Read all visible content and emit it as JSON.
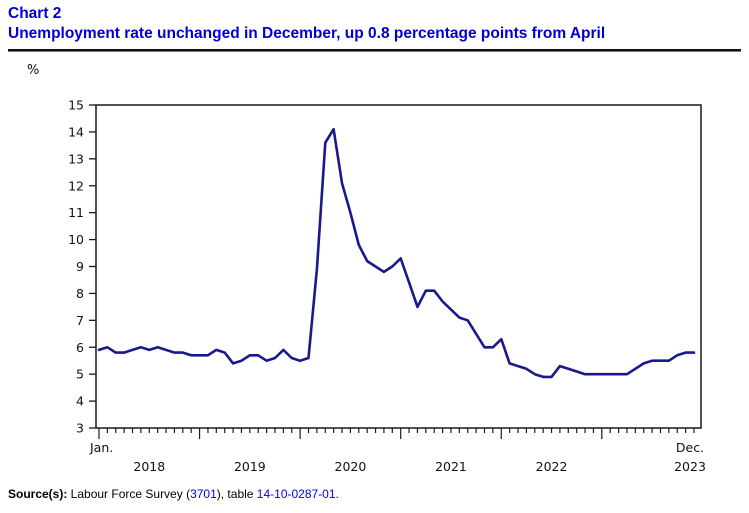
{
  "header": {
    "chart_label": "Chart 2",
    "title": "Unemployment rate unchanged in December, up 0.8 percentage points from April"
  },
  "y_axis_unit": "%",
  "source": {
    "prefix": "Source(s):",
    "text1": " Labour Force Survey (",
    "link1": "3701",
    "text2": "), table ",
    "link2": "14-10-0287-01",
    "text3": "."
  },
  "colors": {
    "title_blue": "#0000d2",
    "link_blue": "#0000ee",
    "line_navy": "#19198c",
    "axis_black": "#1a1a1a"
  },
  "chart_data": {
    "type": "line",
    "title": "Chart 2",
    "subtitle": "Unemployment rate unchanged in December, up 0.8 percentage points from April",
    "ylabel": "%",
    "ylim": [
      3,
      15
    ],
    "y_ticks": [
      3,
      4,
      5,
      6,
      7,
      8,
      9,
      10,
      11,
      12,
      13,
      14,
      15
    ],
    "grid": false,
    "legend": "none",
    "x_unit": "month",
    "x_start": "2018-01",
    "x_end": "2023-12",
    "x_first_label": "Jan.",
    "x_last_label": "Dec.",
    "x_year_labels": [
      "2018",
      "2019",
      "2020",
      "2021",
      "2022",
      "2023"
    ],
    "series": [
      {
        "name": "Unemployment rate (%)",
        "values": [
          5.9,
          6.0,
          5.8,
          5.8,
          5.9,
          6.0,
          5.9,
          6.0,
          5.9,
          5.8,
          5.8,
          5.7,
          5.7,
          5.7,
          5.9,
          5.8,
          5.4,
          5.5,
          5.7,
          5.7,
          5.5,
          5.6,
          5.9,
          5.6,
          5.5,
          5.6,
          8.9,
          13.6,
          14.1,
          12.1,
          11.0,
          9.8,
          9.2,
          9.0,
          8.8,
          9.0,
          9.3,
          8.4,
          7.5,
          8.1,
          8.1,
          7.7,
          7.4,
          7.1,
          7.0,
          6.5,
          6.0,
          6.0,
          6.3,
          5.4,
          5.3,
          5.2,
          5.0,
          4.9,
          4.9,
          5.3,
          5.2,
          5.1,
          5.0,
          5.0,
          5.0,
          5.0,
          5.0,
          5.0,
          5.2,
          5.4,
          5.5,
          5.5,
          5.5,
          5.7,
          5.8,
          5.8
        ]
      }
    ]
  }
}
